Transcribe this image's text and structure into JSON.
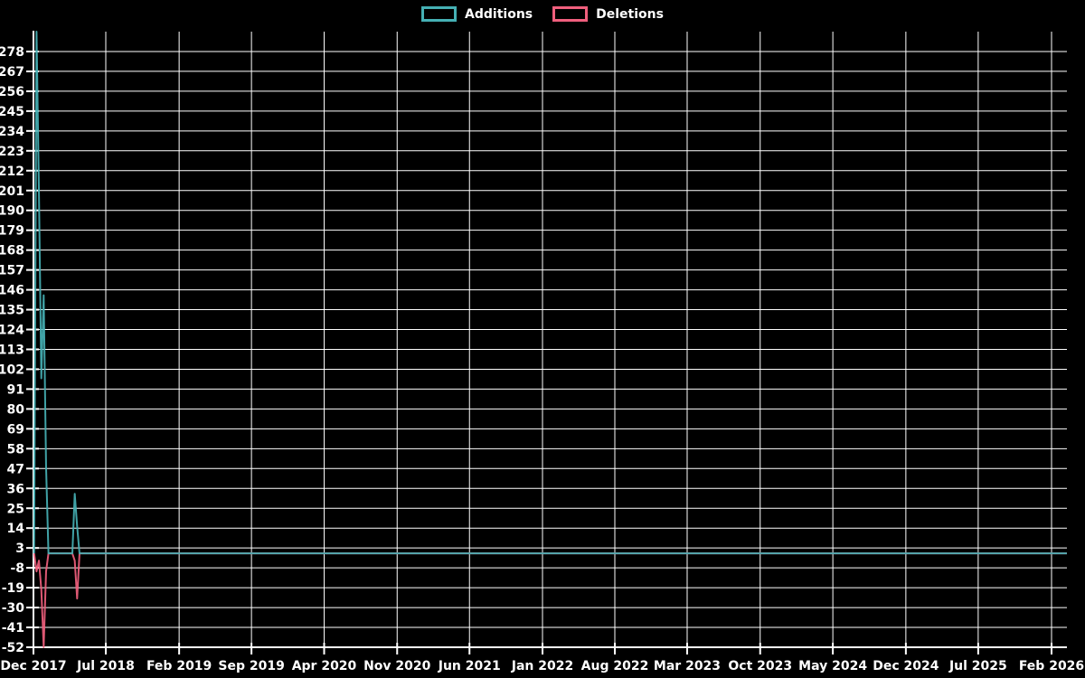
{
  "chart_data": {
    "type": "line",
    "title": "",
    "legend_position": "top-center",
    "grid": true,
    "colors": {
      "background": "#000000",
      "grid": "#ffffff",
      "axis": "#ffffff",
      "text": "#ffffff",
      "additions": "#45b0b4",
      "deletions": "#f05f7d"
    },
    "legend": [
      {
        "label": "Additions",
        "color": "#45b0b4"
      },
      {
        "label": "Deletions",
        "color": "#f05f7d"
      }
    ],
    "y_axis": {
      "min": -52,
      "max": 289,
      "tick_step": 11,
      "tick_labels": [
        278,
        267,
        256,
        245,
        234,
        223,
        212,
        201,
        190,
        179,
        168,
        157,
        146,
        135,
        124,
        113,
        102,
        91,
        80,
        69,
        58,
        47,
        36,
        25,
        14,
        3,
        -8,
        -19,
        -30,
        -41,
        -52
      ]
    },
    "x_axis": {
      "start_date": "2017-12-01",
      "last_tick_date": "2026-02-01",
      "right_edge_date": "2026-03-18",
      "ticks": [
        {
          "label": "Dec 2017",
          "date": "2017-12-01"
        },
        {
          "label": "Jul 2018",
          "date": "2018-07-01"
        },
        {
          "label": "Feb 2019",
          "date": "2019-02-01"
        },
        {
          "label": "Sep 2019",
          "date": "2019-09-01"
        },
        {
          "label": "Apr 2020",
          "date": "2020-04-01"
        },
        {
          "label": "Nov 2020",
          "date": "2020-11-01"
        },
        {
          "label": "Jun 2021",
          "date": "2021-06-01"
        },
        {
          "label": "Jan 2022",
          "date": "2022-01-01"
        },
        {
          "label": "Aug 2022",
          "date": "2022-08-01"
        },
        {
          "label": "Mar 2023",
          "date": "2023-03-01"
        },
        {
          "label": "Oct 2023",
          "date": "2023-10-01"
        },
        {
          "label": "May 2024",
          "date": "2024-05-01"
        },
        {
          "label": "Dec 2024",
          "date": "2024-12-01"
        },
        {
          "label": "Jul 2025",
          "date": "2025-07-01"
        },
        {
          "label": "Feb 2026",
          "date": "2026-02-01"
        }
      ]
    },
    "series": [
      {
        "name": "Additions",
        "color": "#45b0b4",
        "points": [
          {
            "d": "2017-12-03",
            "v": 0
          },
          {
            "d": "2017-12-10",
            "v": 289
          },
          {
            "d": "2017-12-17",
            "v": 201
          },
          {
            "d": "2017-12-24",
            "v": 97
          },
          {
            "d": "2017-12-31",
            "v": 143
          },
          {
            "d": "2018-01-07",
            "v": 48
          },
          {
            "d": "2018-01-14",
            "v": 0
          },
          {
            "d": "2018-03-25",
            "v": 0
          },
          {
            "d": "2018-04-01",
            "v": 33
          },
          {
            "d": "2018-04-08",
            "v": 15
          },
          {
            "d": "2018-04-15",
            "v": 0
          },
          {
            "d": "2026-03-18",
            "v": 0
          }
        ]
      },
      {
        "name": "Deletions",
        "color": "#f05f7d",
        "points": [
          {
            "d": "2017-12-03",
            "v": 0
          },
          {
            "d": "2017-12-10",
            "v": -10
          },
          {
            "d": "2017-12-17",
            "v": -4
          },
          {
            "d": "2017-12-24",
            "v": -20
          },
          {
            "d": "2017-12-31",
            "v": -52
          },
          {
            "d": "2018-01-07",
            "v": -10
          },
          {
            "d": "2018-01-14",
            "v": 0
          },
          {
            "d": "2018-03-25",
            "v": 0
          },
          {
            "d": "2018-04-01",
            "v": -4
          },
          {
            "d": "2018-04-08",
            "v": -25
          },
          {
            "d": "2018-04-15",
            "v": 0
          },
          {
            "d": "2026-03-18",
            "v": 0
          }
        ]
      }
    ]
  }
}
